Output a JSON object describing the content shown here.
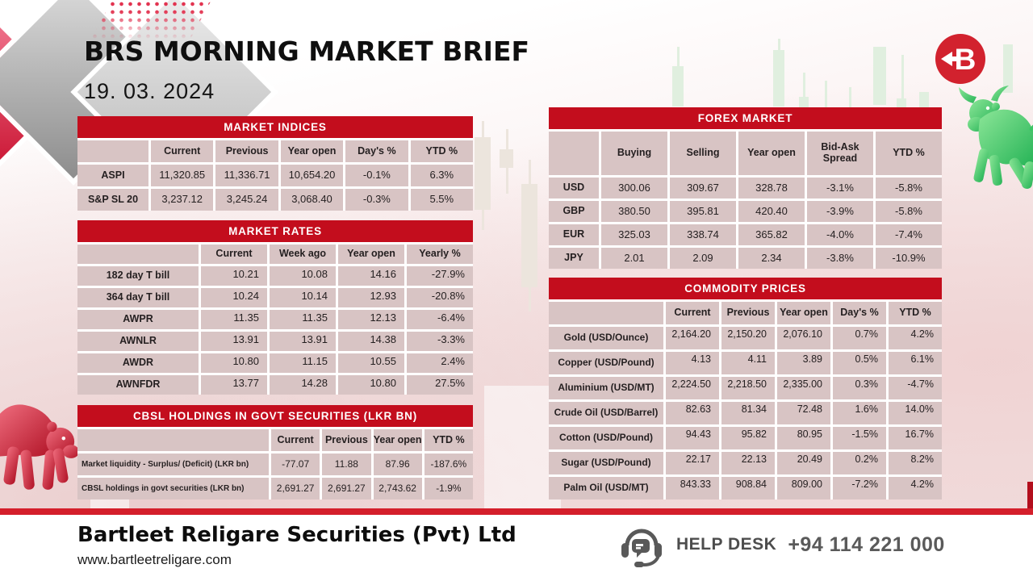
{
  "header": {
    "title": "BRS MORNING MARKET BRIEF",
    "date": "19. 03. 2024"
  },
  "tables": {
    "market_indices": {
      "title": "MARKET INDICES",
      "columns": [
        "",
        "Current",
        "Previous",
        "Year open",
        "Day's %",
        "YTD %"
      ],
      "rows": [
        {
          "label": "ASPI",
          "values": [
            "11,320.85",
            "11,336.71",
            "10,654.20",
            "-0.1%",
            "6.3%"
          ]
        },
        {
          "label": "S&P SL 20",
          "values": [
            "3,237.12",
            "3,245.24",
            "3,068.40",
            "-0.3%",
            "5.5%"
          ]
        }
      ]
    },
    "market_rates": {
      "title": "MARKET RATES",
      "columns": [
        "",
        "Current",
        "Week ago",
        "Year open",
        "Yearly %"
      ],
      "rows": [
        {
          "label": "182 day T bill",
          "values": [
            "10.21",
            "10.08",
            "14.16",
            "-27.9%"
          ]
        },
        {
          "label": "364 day T bill",
          "values": [
            "10.24",
            "10.14",
            "12.93",
            "-20.8%"
          ]
        },
        {
          "label": "AWPR",
          "values": [
            "11.35",
            "11.35",
            "12.13",
            "-6.4%"
          ]
        },
        {
          "label": "AWNLR",
          "values": [
            "13.91",
            "13.91",
            "14.38",
            "-3.3%"
          ]
        },
        {
          "label": "AWDR",
          "values": [
            "10.80",
            "11.15",
            "10.55",
            "2.4%"
          ]
        },
        {
          "label": "AWNFDR",
          "values": [
            "13.77",
            "14.28",
            "10.80",
            "27.5%"
          ]
        }
      ]
    },
    "cbsl_holdings": {
      "title": "CBSL HOLDINGS IN GOVT SECURITIES (LKR BN)",
      "columns": [
        "",
        "Current",
        "Previous",
        "Year open",
        "YTD %"
      ],
      "rows": [
        {
          "label": "Market liquidity - Surplus/ (Deficit) (LKR bn)",
          "values": [
            "-77.07",
            "11.88",
            "87.96",
            "-187.6%"
          ]
        },
        {
          "label": "CBSL holdings in govt securities (LKR bn)",
          "values": [
            "2,691.27",
            "2,691.27",
            "2,743.62",
            "-1.9%"
          ]
        }
      ]
    },
    "forex_market": {
      "title": "FOREX MARKET",
      "columns": [
        "",
        "Buying",
        "Selling",
        "Year open",
        "Bid-Ask Spread",
        "YTD %"
      ],
      "rows": [
        {
          "label": "USD",
          "values": [
            "300.06",
            "309.67",
            "328.78",
            "-3.1%",
            "-5.8%"
          ]
        },
        {
          "label": "GBP",
          "values": [
            "380.50",
            "395.81",
            "420.40",
            "-3.9%",
            "-5.8%"
          ]
        },
        {
          "label": "EUR",
          "values": [
            "325.03",
            "338.74",
            "365.82",
            "-4.0%",
            "-7.4%"
          ]
        },
        {
          "label": "JPY",
          "values": [
            "2.01",
            "2.09",
            "2.34",
            "-3.8%",
            "-10.9%"
          ]
        }
      ]
    },
    "commodity_prices": {
      "title": "COMMODITY PRICES",
      "columns": [
        "",
        "Current",
        "Previous",
        "Year open",
        "Day's %",
        "YTD %"
      ],
      "rows": [
        {
          "label": "Gold (USD/Ounce)",
          "values": [
            "2,164.20",
            "2,150.20",
            "2,076.10",
            "0.7%",
            "4.2%"
          ]
        },
        {
          "label": "Copper (USD/Pound)",
          "values": [
            "4.13",
            "4.11",
            "3.89",
            "0.5%",
            "6.1%"
          ]
        },
        {
          "label": "Aluminium (USD/MT)",
          "values": [
            "2,224.50",
            "2,218.50",
            "2,335.00",
            "0.3%",
            "-4.7%"
          ]
        },
        {
          "label": "Crude Oil (USD/Barrel)",
          "values": [
            "82.63",
            "81.34",
            "72.48",
            "1.6%",
            "14.0%"
          ]
        },
        {
          "label": "Cotton (USD/Pound)",
          "values": [
            "94.43",
            "95.82",
            "80.95",
            "-1.5%",
            "16.7%"
          ]
        },
        {
          "label": "Sugar (USD/Pound)",
          "values": [
            "22.17",
            "22.13",
            "20.49",
            "0.2%",
            "8.2%"
          ]
        },
        {
          "label": "Palm Oil (USD/MT)",
          "values": [
            "843.33",
            "908.84",
            "809.00",
            "-7.2%",
            "4.2%"
          ]
        }
      ]
    }
  },
  "footer": {
    "company": "Bartleet Religare Securities (Pvt) Ltd",
    "website": "www.bartleetreligare.com",
    "helpdesk_label": "HELP DESK",
    "helpdesk_phone": "+94 114 221 000"
  },
  "icons": {
    "logo": "brs-arrow-b-logo",
    "bull": "bull-graphic",
    "bear": "bear-graphic",
    "helpdesk": "headset-chat-icon"
  },
  "colors": {
    "brand_red": "#c30d1d",
    "divider_red": "#d41f2b",
    "cell_pink": "#d8c4c4",
    "bull_green": "#3fcf6e",
    "bear_red": "#c4293c",
    "footer_gray": "#5a5a5a"
  }
}
